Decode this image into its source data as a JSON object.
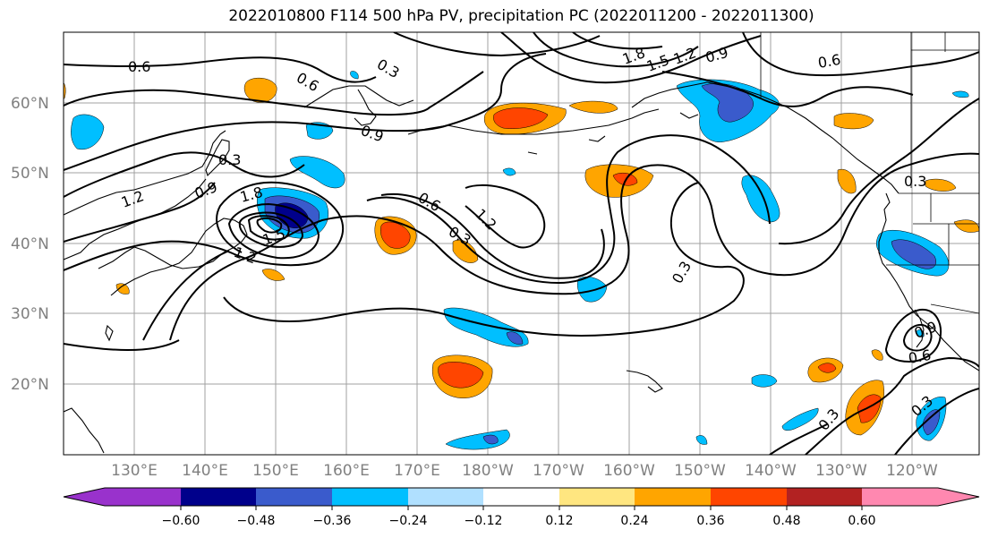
{
  "title": "2022010800 F114 500 hPa PV, precipitation PC (2022011200 - 2022011300)",
  "lat_labels": [
    "60°N",
    "50°N",
    "40°N",
    "30°N",
    "20°N"
  ],
  "lon_labels": [
    "130°E",
    "140°E",
    "150°E",
    "160°E",
    "170°E",
    "180°W",
    "170°W",
    "160°W",
    "150°W",
    "140°W",
    "130°W",
    "120°W"
  ],
  "colorbar": {
    "colors": [
      "#9932cc",
      "#00008b",
      "#3a5bcc",
      "#00bfff",
      "#b0e0ff",
      "#ffffff",
      "#ffe680",
      "#ffa500",
      "#ff4500",
      "#b22222",
      "#ff88b0"
    ],
    "tick_labels": [
      "−0.60",
      "−0.48",
      "−0.36",
      "−0.24",
      "−0.12",
      "0.12",
      "0.24",
      "0.36",
      "0.48",
      "0.60"
    ]
  },
  "contour_labels": [
    "0.6",
    "0.3",
    "0.6",
    "1.8",
    "1.5",
    "1.2",
    "0.9",
    "0.6",
    "0.3",
    "0.9",
    "0.3",
    "0.9",
    "1.2",
    "1.8",
    "1.5",
    "1.2",
    "0.6",
    "0.3",
    "1.2",
    "0.3",
    "0.9",
    "0.6",
    "0.3",
    "0.3"
  ]
}
